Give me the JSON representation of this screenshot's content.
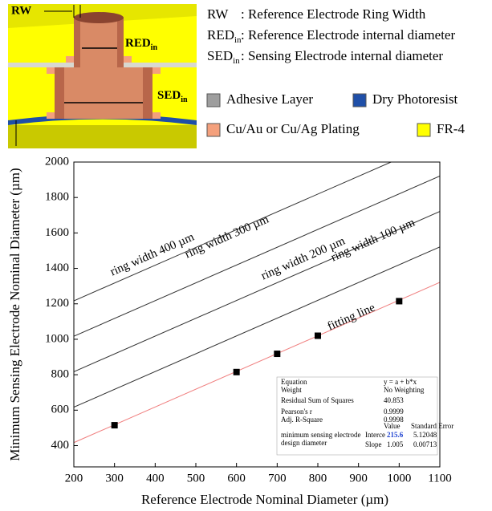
{
  "diagram": {
    "labels": {
      "rw": "RW",
      "red": "RED",
      "red_sub": "in",
      "sed": "SED",
      "sed_sub": "in"
    },
    "definitions": [
      {
        "symbol": "RW",
        "symbol_sub": "",
        "text": ": Reference Electrode Ring Width"
      },
      {
        "symbol": "RED",
        "symbol_sub": "in",
        "text": ": Reference Electrode internal diameter"
      },
      {
        "symbol": "SED",
        "symbol_sub": "in",
        "text": ": Sensing Electrode internal diameter"
      }
    ],
    "materials": [
      {
        "name": "Adhesive Layer",
        "color": "#9e9e9e"
      },
      {
        "name": "Dry Photoresist",
        "color": "#1f4fa8"
      },
      {
        "name": "Cu/Au or Cu/Ag Plating",
        "color": "#f4a07c"
      },
      {
        "name": "FR-4",
        "color": "#ffff00"
      }
    ]
  },
  "chart_data": {
    "type": "line",
    "x_label": "Reference Electrode Nominal Diameter (µm)",
    "y_label": "Minimum Sensing Electrode Nominal Diameter (µm)",
    "xlim": [
      200,
      1100
    ],
    "ylim": [
      280,
      2000
    ],
    "xticks": [
      200,
      300,
      400,
      500,
      600,
      700,
      800,
      900,
      1000,
      1100
    ],
    "yticks": [
      400,
      600,
      800,
      1000,
      1200,
      1400,
      1600,
      1800,
      2000
    ],
    "series": [
      {
        "name": "ring width 400 µm",
        "color": "#333333",
        "x": [
          200,
          980
        ],
        "values": [
          1217,
          2000
        ]
      },
      {
        "name": "ring width 300 µm",
        "color": "#333333",
        "x": [
          200,
          1100
        ],
        "values": [
          1017,
          1921
        ]
      },
      {
        "name": "ring width 200 µm",
        "color": "#333333",
        "x": [
          200,
          1100
        ],
        "values": [
          817,
          1721
        ]
      },
      {
        "name": "ring width 100 µm",
        "color": "#333333",
        "x": [
          200,
          1100
        ],
        "values": [
          617,
          1521
        ]
      },
      {
        "name": "fitting line",
        "color": "#f08080",
        "x": [
          200,
          1100
        ],
        "values": [
          417,
          1321
        ]
      }
    ],
    "points": {
      "color": "#000000",
      "x": [
        300,
        600,
        700,
        800,
        1000
      ],
      "values": [
        515,
        815,
        918,
        1020,
        1215
      ]
    }
  },
  "fit_table": {
    "rows": [
      [
        "Equation",
        "y = a + b*x"
      ],
      [
        "Weight",
        "No Weighting"
      ],
      [
        "Residual Sum of Squares",
        "40.853"
      ],
      [
        "Pearson's r",
        "0.9999"
      ],
      [
        "Adj. R-Square",
        "0.9998"
      ]
    ],
    "header": [
      "Value",
      "Standard Error"
    ],
    "param_label": "minimum sensing electrode design diameter",
    "params": [
      [
        "Interce",
        "215.6",
        "5.12048"
      ],
      [
        "Slope",
        "1.005",
        "0.00713"
      ]
    ]
  }
}
